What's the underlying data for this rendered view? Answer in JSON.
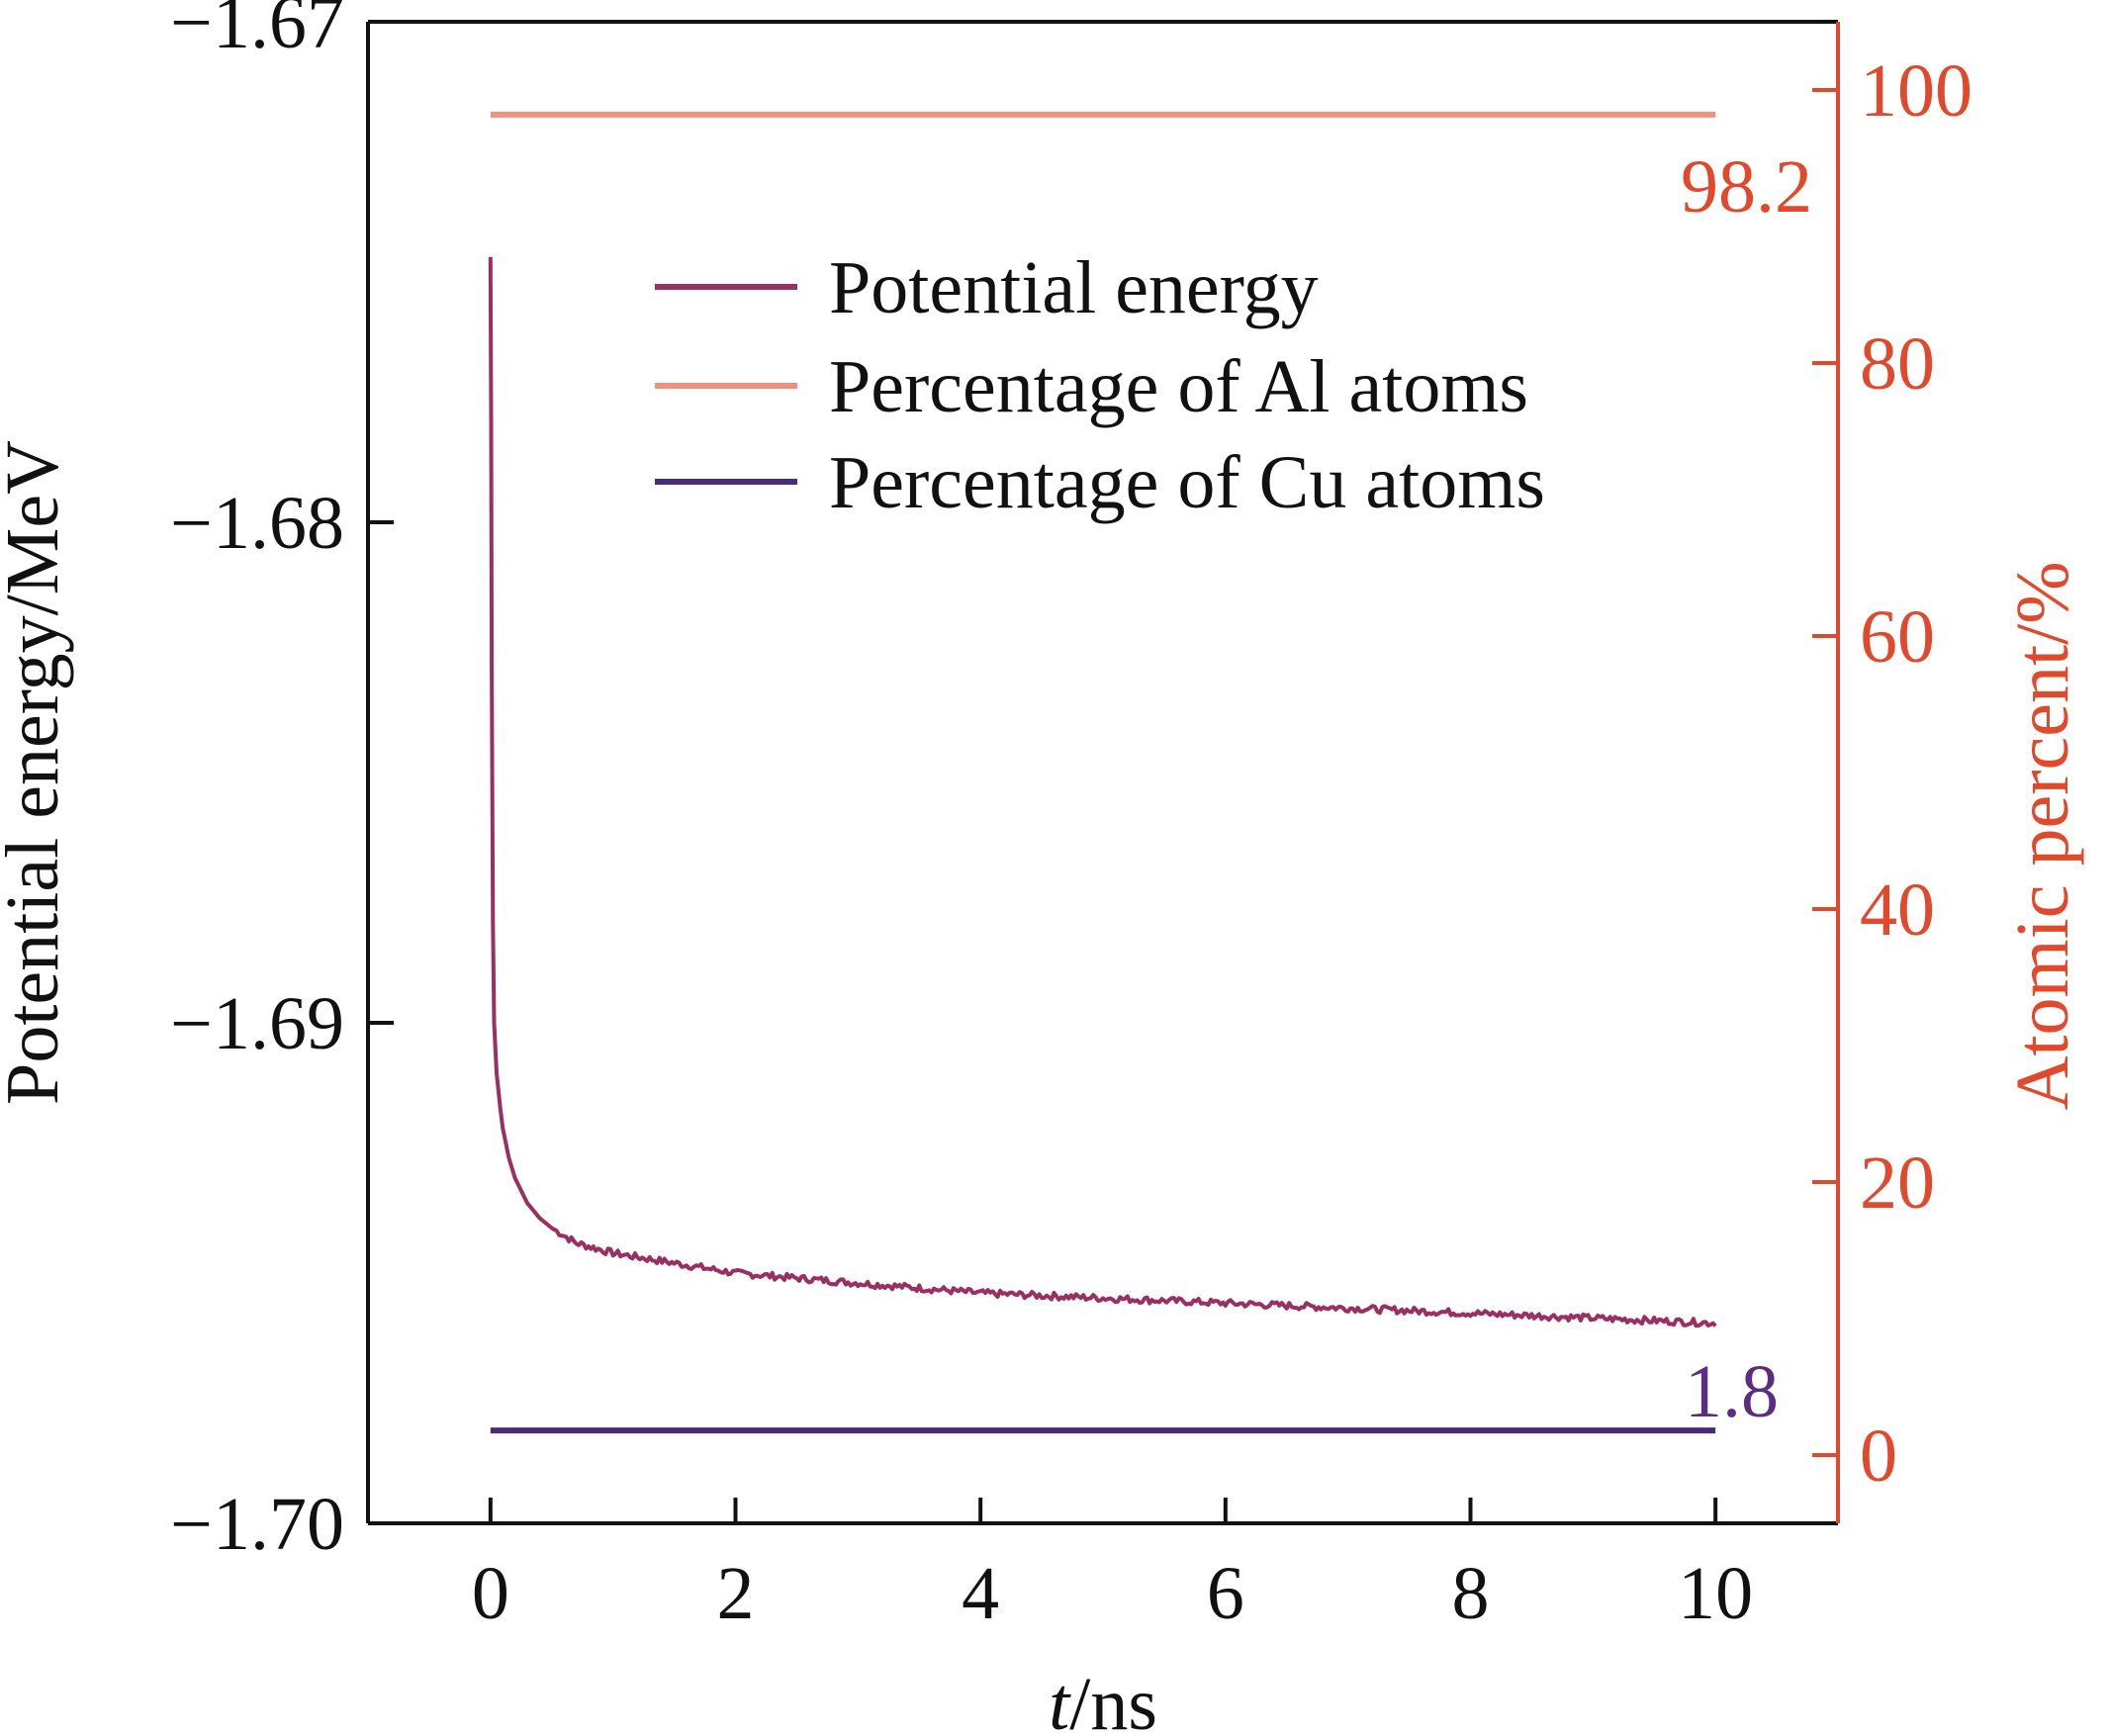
{
  "colors": {
    "left_axis": "#111111",
    "right_axis": "#e0492c",
    "potential": "#9a2f62",
    "al": "#f2907e",
    "cu": "#4b2a7a",
    "cu_label": "#5a2d82"
  },
  "chart_data": {
    "type": "line",
    "title": "",
    "xlabel": {
      "italic": "t",
      "rest": "/ns"
    },
    "ylabel_left": "Potential energy/MeV",
    "ylabel_right": "Atomic percent/%",
    "xlim": [
      -1,
      11
    ],
    "ylim_left": [
      -1.7,
      -1.67
    ],
    "ylim_right": [
      -5,
      105
    ],
    "x_ticks": [
      0,
      2,
      4,
      6,
      8,
      10
    ],
    "x_tick_labels": [
      "0",
      "2",
      "4",
      "6",
      "8",
      "10"
    ],
    "left_ticks": [
      -1.67,
      -1.68,
      -1.69,
      -1.7
    ],
    "left_tick_labels": [
      "−1.67",
      "−1.68",
      "−1.69",
      "−1.70"
    ],
    "right_ticks": [
      0,
      20,
      40,
      60,
      80,
      100
    ],
    "right_tick_labels": [
      "0",
      "20",
      "40",
      "60",
      "80",
      "100"
    ],
    "legend": {
      "position": "upper-center",
      "entries": [
        "Potential energy",
        "Percentage of Al atoms",
        "Percentage of Cu atoms"
      ]
    },
    "series": [
      {
        "name": "Potential energy",
        "axis": "left",
        "x": [
          0,
          0.005,
          0.01,
          0.02,
          0.03,
          0.05,
          0.08,
          0.1,
          0.15,
          0.2,
          0.3,
          0.4,
          0.5,
          0.7,
          1.0,
          1.5,
          2,
          3,
          4,
          5,
          6,
          7,
          8,
          9,
          10
        ],
        "y": [
          -1.6747,
          -1.678,
          -1.683,
          -1.688,
          -1.69,
          -1.691,
          -1.6917,
          -1.6921,
          -1.6927,
          -1.6931,
          -1.6936,
          -1.6939,
          -1.6941,
          -1.6944,
          -1.6946,
          -1.6948,
          -1.695,
          -1.6952,
          -1.6954,
          -1.6955,
          -1.6956,
          -1.6957,
          -1.6958,
          -1.6959,
          -1.696
        ]
      },
      {
        "name": "Percentage of Al atoms",
        "axis": "right",
        "x": [
          0,
          10
        ],
        "y": [
          98.2,
          98.2
        ]
      },
      {
        "name": "Percentage of Cu atoms",
        "axis": "right",
        "x": [
          0,
          10
        ],
        "y": [
          1.8,
          1.8
        ]
      }
    ],
    "annotations": [
      {
        "text": "98.2",
        "series": "Percentage of Al atoms"
      },
      {
        "text": "1.8",
        "series": "Percentage of Cu atoms"
      }
    ]
  }
}
